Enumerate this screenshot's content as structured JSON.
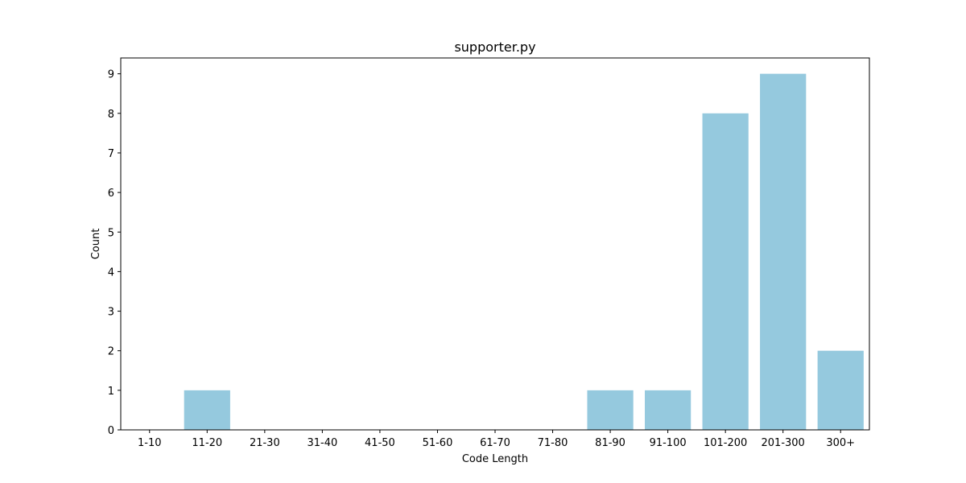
{
  "chart_data": {
    "type": "bar",
    "title": "supporter.py",
    "xlabel": "Code Length",
    "ylabel": "Count",
    "categories": [
      "1-10",
      "11-20",
      "21-30",
      "31-40",
      "41-50",
      "51-60",
      "61-70",
      "71-80",
      "81-90",
      "91-100",
      "101-200",
      "201-300",
      "300+"
    ],
    "values": [
      0,
      1,
      0,
      0,
      0,
      0,
      0,
      0,
      1,
      1,
      8,
      9,
      2
    ],
    "ylim": [
      0,
      9.4
    ],
    "yticks": [
      0,
      1,
      2,
      3,
      4,
      5,
      6,
      7,
      8,
      9
    ],
    "bar_color": "#95c9de",
    "grid": false,
    "legend": "none"
  }
}
